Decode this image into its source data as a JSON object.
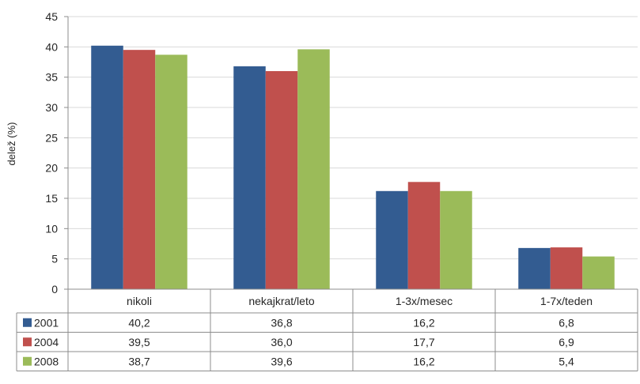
{
  "chart_data": {
    "type": "bar",
    "ylabel": "delež (%)",
    "xlabel": "",
    "ylim": [
      0,
      45
    ],
    "yticks": [
      0,
      5,
      10,
      15,
      20,
      25,
      30,
      35,
      40,
      45
    ],
    "grid": true,
    "legend": "data-table-left",
    "categories": [
      "nikoli",
      "nekajkrat/leto",
      "1-3x/mesec",
      "1-7x/teden"
    ],
    "series": [
      {
        "name": "2001",
        "color": "#335C91",
        "values": [
          40.2,
          36.8,
          16.2,
          6.8
        ],
        "labels": [
          "40,2",
          "36,8",
          "16,2",
          "6,8"
        ]
      },
      {
        "name": "2004",
        "color": "#C0504D",
        "values": [
          39.5,
          36.0,
          17.7,
          6.9
        ],
        "labels": [
          "39,5",
          "36,0",
          "17,7",
          "6,9"
        ]
      },
      {
        "name": "2008",
        "color": "#9BBB59",
        "values": [
          38.7,
          39.6,
          16.2,
          5.4
        ],
        "labels": [
          "38,7",
          "39,6",
          "16,2",
          "5,4"
        ]
      }
    ]
  }
}
